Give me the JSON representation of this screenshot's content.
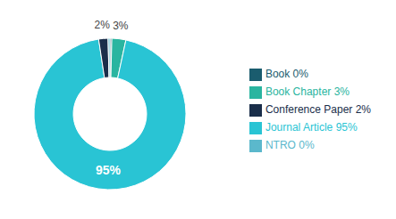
{
  "chart_data": {
    "type": "pie",
    "categories": [
      "Book 0%",
      "Book Chapter 3%",
      "Journal Article 95%",
      "Conference Paper 2%",
      "NTRO 0%"
    ],
    "values": [
      0.4,
      3,
      95,
      2,
      0.4
    ],
    "value_labels": [
      null,
      "3%",
      "95%",
      "2%",
      null
    ],
    "colors": [
      "#1a5c6e",
      "#2ab5a0",
      "#29c4d4",
      "#1a2e4a",
      "#5bb8cc"
    ],
    "legend": "right"
  }
}
